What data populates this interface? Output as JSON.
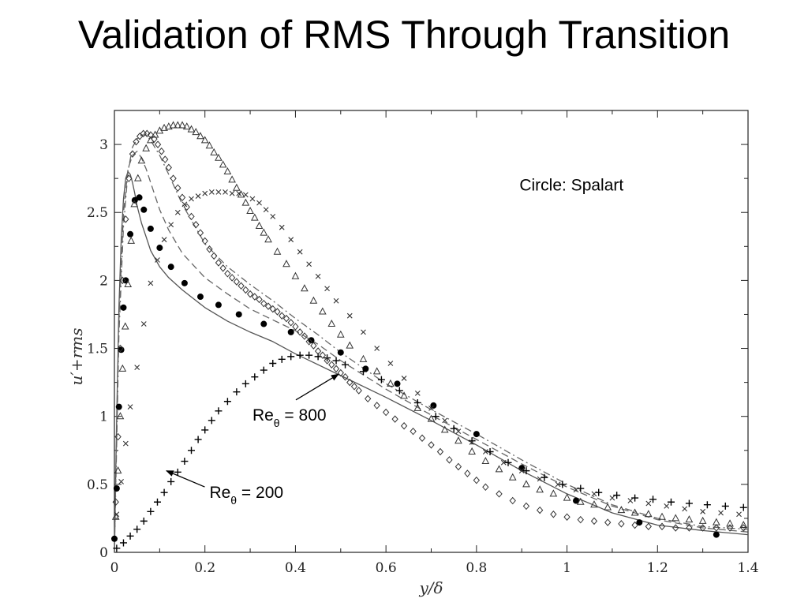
{
  "slide": {
    "title": "Validation of RMS Through Transition"
  },
  "chart_data": {
    "type": "line",
    "title": "Validation of RMS Through Transition",
    "xlabel": "y/δ",
    "ylabel": "u′+rms",
    "xlim": [
      0,
      1.4
    ],
    "ylim": [
      0,
      3.25
    ],
    "xticks": [
      0,
      0.2,
      0.4,
      0.6,
      0.8,
      1,
      1.2,
      1.4
    ],
    "xtick_labels": [
      "0",
      "0.2",
      "0.4",
      "0.6",
      "0.8",
      "1",
      "1.2",
      "1.4"
    ],
    "yticks": [
      0,
      0.5,
      1,
      1.5,
      2,
      2.5,
      3
    ],
    "ytick_labels": [
      "0",
      "0.5",
      "1",
      "1.5",
      "2",
      "2.5",
      "3"
    ],
    "grid": false,
    "annotations": [
      {
        "id": "re800",
        "prefix": "Re",
        "sub": "θ",
        "suffix": " = 800",
        "x": 0.305,
        "y": 0.97,
        "arrow_to": [
          0.495,
          1.31
        ]
      },
      {
        "id": "re200",
        "prefix": "Re",
        "sub": "θ",
        "suffix": " = 200",
        "x": 0.21,
        "y": 0.4,
        "arrow_to": [
          0.115,
          0.6
        ]
      },
      {
        "id": "legend",
        "text": "Circle: Spalart",
        "x": 0.895,
        "y": 2.66
      }
    ],
    "series": [
      {
        "style": "solid",
        "x": [
          0,
          0.005,
          0.01,
          0.015,
          0.02,
          0.025,
          0.03,
          0.035,
          0.04,
          0.045,
          0.05,
          0.06,
          0.07,
          0.08,
          0.1,
          0.12,
          0.15,
          0.2,
          0.25,
          0.3,
          0.35,
          0.4,
          0.5,
          0.6,
          0.7,
          0.8,
          0.9,
          1.0,
          1.1,
          1.2,
          1.3,
          1.4
        ],
        "y": [
          0,
          1.0,
          1.8,
          2.3,
          2.6,
          2.75,
          2.8,
          2.78,
          2.72,
          2.64,
          2.55,
          2.42,
          2.32,
          2.22,
          2.1,
          2.02,
          1.93,
          1.8,
          1.7,
          1.62,
          1.55,
          1.46,
          1.3,
          1.14,
          0.97,
          0.79,
          0.6,
          0.43,
          0.29,
          0.2,
          0.16,
          0.13
        ]
      },
      {
        "style": "dashed",
        "x": [
          0,
          0.005,
          0.01,
          0.02,
          0.03,
          0.04,
          0.05,
          0.06,
          0.07,
          0.08,
          0.1,
          0.12,
          0.15,
          0.2,
          0.25,
          0.3,
          0.35,
          0.4,
          0.45,
          0.5,
          0.6,
          0.7,
          0.8,
          0.9,
          1.0,
          1.1,
          1.2,
          1.3,
          1.4
        ],
        "y": [
          0,
          0.9,
          1.7,
          2.5,
          2.82,
          2.92,
          2.95,
          2.9,
          2.82,
          2.72,
          2.52,
          2.37,
          2.2,
          2.02,
          1.9,
          1.79,
          1.71,
          1.63,
          1.53,
          1.41,
          1.2,
          1.01,
          0.83,
          0.65,
          0.48,
          0.34,
          0.24,
          0.18,
          0.15
        ]
      },
      {
        "style": "dashdot",
        "x": [
          0,
          0.005,
          0.01,
          0.02,
          0.03,
          0.04,
          0.05,
          0.06,
          0.07,
          0.08,
          0.1,
          0.12,
          0.15,
          0.2,
          0.25,
          0.3,
          0.35,
          0.4,
          0.45,
          0.5,
          0.6,
          0.7,
          0.8,
          0.9,
          1.0,
          1.1,
          1.2,
          1.3,
          1.4
        ],
        "y": [
          0,
          0.8,
          1.6,
          2.4,
          2.8,
          2.98,
          3.04,
          3.07,
          3.07,
          3.03,
          2.92,
          2.78,
          2.56,
          2.27,
          2.1,
          1.97,
          1.85,
          1.72,
          1.6,
          1.47,
          1.24,
          1.05,
          0.87,
          0.68,
          0.5,
          0.35,
          0.25,
          0.19,
          0.17
        ]
      },
      {
        "marker": "filled-circle",
        "name": "Spalart",
        "x": [
          0,
          0.005,
          0.01,
          0.015,
          0.02,
          0.025,
          0.035,
          0.045,
          0.055,
          0.065,
          0.08,
          0.1,
          0.125,
          0.155,
          0.19,
          0.23,
          0.275,
          0.33,
          0.39,
          0.435,
          0.5,
          0.555,
          0.625,
          0.705,
          0.8,
          0.9,
          1.02,
          1.16,
          1.33
        ],
        "y": [
          0.1,
          0.47,
          1.07,
          1.49,
          1.8,
          2.0,
          2.34,
          2.59,
          2.61,
          2.52,
          2.38,
          2.24,
          2.1,
          1.98,
          1.88,
          1.82,
          1.75,
          1.68,
          1.62,
          1.56,
          1.47,
          1.35,
          1.24,
          1.08,
          0.87,
          0.62,
          0.38,
          0.22,
          0.13
        ]
      },
      {
        "marker": "plus",
        "name": "Re_θ = 200",
        "x": [
          0.005,
          0.02,
          0.035,
          0.05,
          0.065,
          0.08,
          0.095,
          0.11,
          0.125,
          0.14,
          0.155,
          0.17,
          0.185,
          0.2,
          0.215,
          0.23,
          0.25,
          0.27,
          0.29,
          0.31,
          0.33,
          0.35,
          0.37,
          0.39,
          0.41,
          0.43,
          0.45,
          0.47,
          0.49,
          0.51,
          0.55,
          0.59,
          0.63,
          0.67,
          0.71,
          0.75,
          0.79,
          0.83,
          0.87,
          0.91,
          0.95,
          0.99,
          1.03,
          1.07,
          1.11,
          1.15,
          1.19,
          1.23,
          1.27,
          1.31,
          1.35,
          1.39
        ],
        "y": [
          0.03,
          0.07,
          0.12,
          0.17,
          0.23,
          0.3,
          0.37,
          0.44,
          0.52,
          0.59,
          0.67,
          0.75,
          0.83,
          0.9,
          0.97,
          1.04,
          1.11,
          1.18,
          1.24,
          1.29,
          1.34,
          1.39,
          1.42,
          1.44,
          1.45,
          1.45,
          1.44,
          1.43,
          1.41,
          1.38,
          1.33,
          1.27,
          1.19,
          1.1,
          1.0,
          0.91,
          0.82,
          0.74,
          0.66,
          0.6,
          0.55,
          0.5,
          0.47,
          0.44,
          0.42,
          0.4,
          0.39,
          0.37,
          0.36,
          0.35,
          0.34,
          0.33
        ]
      },
      {
        "marker": "cross",
        "name": "Re_θ = 800",
        "x": [
          0.005,
          0.015,
          0.025,
          0.035,
          0.05,
          0.065,
          0.08,
          0.095,
          0.11,
          0.125,
          0.14,
          0.155,
          0.17,
          0.185,
          0.2,
          0.215,
          0.23,
          0.245,
          0.26,
          0.275,
          0.29,
          0.305,
          0.32,
          0.335,
          0.35,
          0.37,
          0.39,
          0.41,
          0.43,
          0.45,
          0.47,
          0.49,
          0.52,
          0.55,
          0.58,
          0.61,
          0.64,
          0.67,
          0.7,
          0.73,
          0.76,
          0.79,
          0.82,
          0.86,
          0.9,
          0.94,
          0.98,
          1.02,
          1.06,
          1.1,
          1.14,
          1.18,
          1.22,
          1.26,
          1.3,
          1.34,
          1.38
        ],
        "y": [
          0.28,
          0.52,
          0.8,
          1.07,
          1.36,
          1.68,
          1.98,
          2.15,
          2.3,
          2.41,
          2.5,
          2.56,
          2.6,
          2.62,
          2.64,
          2.65,
          2.65,
          2.65,
          2.64,
          2.64,
          2.63,
          2.6,
          2.57,
          2.52,
          2.47,
          2.39,
          2.3,
          2.21,
          2.12,
          2.03,
          1.94,
          1.85,
          1.74,
          1.62,
          1.5,
          1.39,
          1.28,
          1.17,
          1.06,
          0.97,
          0.89,
          0.81,
          0.74,
          0.66,
          0.6,
          0.54,
          0.5,
          0.46,
          0.43,
          0.4,
          0.38,
          0.36,
          0.34,
          0.32,
          0.3,
          0.29,
          0.28
        ]
      },
      {
        "marker": "triangle",
        "x": [
          0.003,
          0.008,
          0.013,
          0.018,
          0.024,
          0.03,
          0.037,
          0.044,
          0.052,
          0.06,
          0.07,
          0.08,
          0.09,
          0.1,
          0.11,
          0.12,
          0.13,
          0.14,
          0.15,
          0.16,
          0.17,
          0.18,
          0.19,
          0.2,
          0.21,
          0.22,
          0.23,
          0.24,
          0.25,
          0.26,
          0.27,
          0.28,
          0.29,
          0.3,
          0.31,
          0.32,
          0.33,
          0.34,
          0.36,
          0.38,
          0.4,
          0.42,
          0.44,
          0.46,
          0.48,
          0.5,
          0.52,
          0.55,
          0.58,
          0.61,
          0.64,
          0.67,
          0.7,
          0.73,
          0.76,
          0.79,
          0.82,
          0.85,
          0.88,
          0.91,
          0.94,
          0.97,
          1.0,
          1.03,
          1.06,
          1.09,
          1.12,
          1.15,
          1.18,
          1.21,
          1.24,
          1.27,
          1.3,
          1.33,
          1.36,
          1.39
        ],
        "y": [
          0.26,
          0.6,
          1.0,
          1.35,
          1.66,
          1.97,
          2.29,
          2.56,
          2.75,
          2.88,
          2.97,
          3.03,
          3.07,
          3.1,
          3.12,
          3.13,
          3.14,
          3.14,
          3.14,
          3.13,
          3.11,
          3.09,
          3.06,
          3.03,
          2.99,
          2.94,
          2.9,
          2.85,
          2.8,
          2.74,
          2.68,
          2.63,
          2.57,
          2.51,
          2.46,
          2.4,
          2.35,
          2.3,
          2.21,
          2.12,
          2.03,
          1.94,
          1.85,
          1.77,
          1.68,
          1.6,
          1.52,
          1.42,
          1.33,
          1.24,
          1.15,
          1.06,
          0.98,
          0.9,
          0.82,
          0.74,
          0.67,
          0.61,
          0.55,
          0.5,
          0.46,
          0.43,
          0.4,
          0.37,
          0.35,
          0.33,
          0.31,
          0.29,
          0.28,
          0.26,
          0.25,
          0.24,
          0.23,
          0.22,
          0.21,
          0.2
        ]
      },
      {
        "marker": "diamond",
        "x": [
          0.003,
          0.008,
          0.013,
          0.018,
          0.025,
          0.032,
          0.04,
          0.048,
          0.056,
          0.064,
          0.072,
          0.08,
          0.088,
          0.096,
          0.104,
          0.112,
          0.12,
          0.13,
          0.14,
          0.15,
          0.16,
          0.17,
          0.18,
          0.19,
          0.2,
          0.21,
          0.22,
          0.23,
          0.24,
          0.25,
          0.26,
          0.27,
          0.28,
          0.29,
          0.3,
          0.31,
          0.32,
          0.33,
          0.34,
          0.35,
          0.36,
          0.37,
          0.38,
          0.39,
          0.4,
          0.41,
          0.42,
          0.43,
          0.44,
          0.45,
          0.46,
          0.47,
          0.48,
          0.49,
          0.5,
          0.51,
          0.52,
          0.53,
          0.54,
          0.56,
          0.58,
          0.6,
          0.62,
          0.64,
          0.66,
          0.68,
          0.7,
          0.72,
          0.74,
          0.76,
          0.78,
          0.8,
          0.82,
          0.85,
          0.88,
          0.91,
          0.94,
          0.97,
          1.0,
          1.03,
          1.06,
          1.09,
          1.12,
          1.15,
          1.18,
          1.21,
          1.24,
          1.27,
          1.3,
          1.33,
          1.36,
          1.39
        ],
        "y": [
          0.37,
          0.85,
          1.5,
          2.0,
          2.45,
          2.75,
          2.93,
          3.02,
          3.06,
          3.08,
          3.08,
          3.07,
          3.04,
          3.0,
          2.95,
          2.89,
          2.83,
          2.75,
          2.68,
          2.61,
          2.54,
          2.47,
          2.41,
          2.35,
          2.29,
          2.23,
          2.18,
          2.13,
          2.09,
          2.05,
          2.02,
          1.99,
          1.96,
          1.93,
          1.9,
          1.88,
          1.86,
          1.83,
          1.81,
          1.79,
          1.77,
          1.74,
          1.72,
          1.69,
          1.66,
          1.62,
          1.59,
          1.55,
          1.52,
          1.48,
          1.45,
          1.41,
          1.38,
          1.35,
          1.32,
          1.29,
          1.25,
          1.22,
          1.19,
          1.13,
          1.08,
          1.03,
          0.98,
          0.93,
          0.89,
          0.84,
          0.79,
          0.74,
          0.68,
          0.63,
          0.58,
          0.53,
          0.48,
          0.43,
          0.38,
          0.34,
          0.31,
          0.28,
          0.26,
          0.24,
          0.23,
          0.22,
          0.21,
          0.2,
          0.19,
          0.19,
          0.18,
          0.18,
          0.18,
          0.18,
          0.18,
          0.18
        ]
      }
    ]
  }
}
